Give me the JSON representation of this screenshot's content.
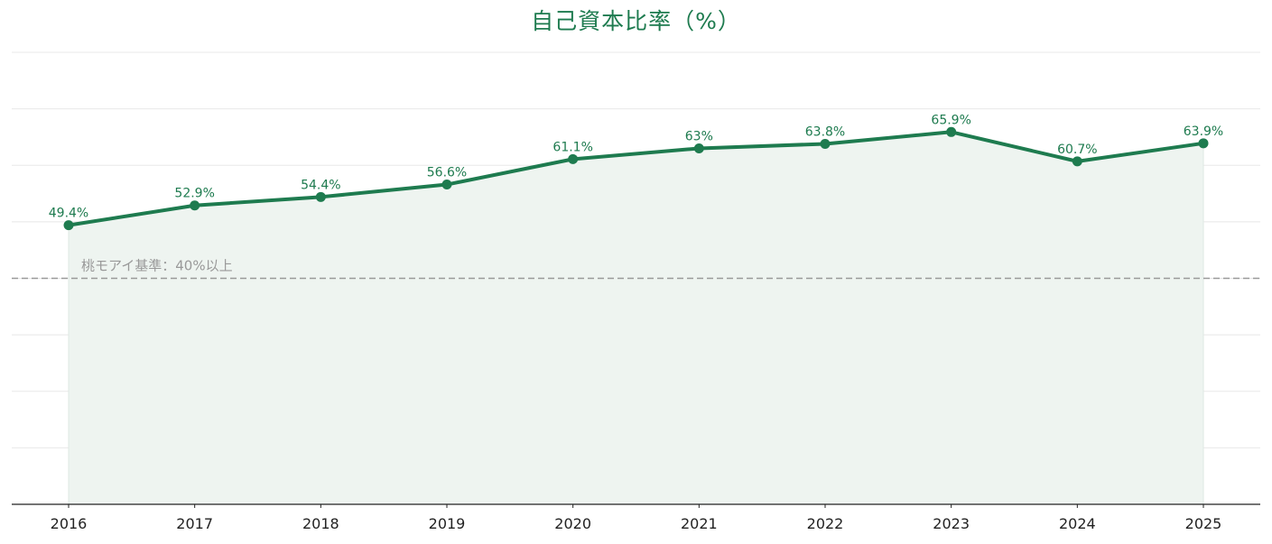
{
  "chart_data": {
    "type": "line",
    "title": "自己資本比率（%）",
    "x": [
      "2016",
      "2017",
      "2018",
      "2019",
      "2020",
      "2021",
      "2022",
      "2023",
      "2024",
      "2025"
    ],
    "series": [
      {
        "values": [
          49.4,
          52.9,
          54.4,
          56.6,
          61.1,
          63,
          63.8,
          65.9,
          60.7,
          63.9
        ],
        "data_labels": [
          "49.4%",
          "52.9%",
          "54.4%",
          "56.6%",
          "61.1%",
          "63%",
          "63.8%",
          "65.9%",
          "60.7%",
          "63.9%"
        ]
      }
    ],
    "ylim": [
      0,
      80
    ],
    "y_gridlines": [
      10,
      20,
      30,
      40,
      50,
      60,
      70,
      80
    ],
    "y_tick_labels_shown": false,
    "grid": true,
    "area_fill": true,
    "reference_line": {
      "value": 40,
      "label": "桃モアイ基準：40%以上",
      "style": "dashed"
    },
    "colors": {
      "line": "#1e7b4f",
      "title": "#1e7b4f",
      "area": "#eef4f0",
      "reference": "#999999",
      "grid": "#e8e8e8",
      "axis": "#222222"
    }
  }
}
